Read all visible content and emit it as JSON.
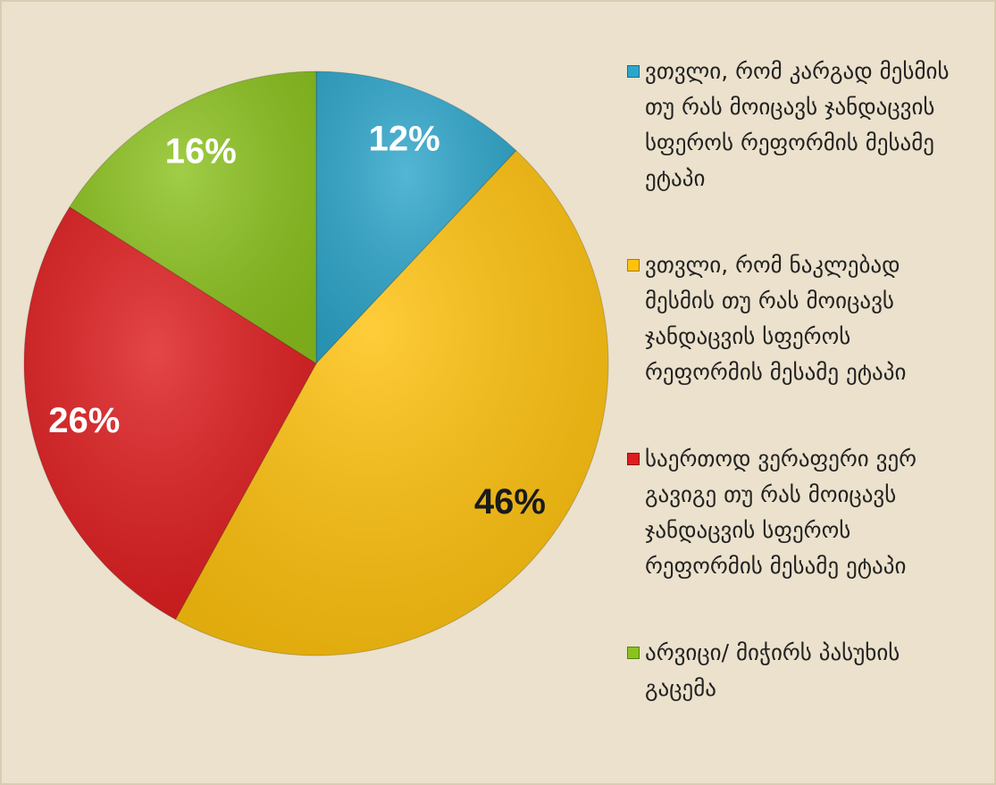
{
  "chart_data": {
    "type": "pie",
    "categories": [
      "ვთვლი, რომ კარგად მესმის თუ რას მოიცავს ჯანდაცვის სფეროს რეფორმის მესამე ეტაპი",
      "ვთვლი, რომ ნაკლებად მესმის თუ რას მოიცავს ჯანდაცვის სფეროს რეფორმის მესამე ეტაპი",
      "საერთოდ ვერაფერი ვერ გავიგე თუ რას მოიცავს ჯანდაცვის სფეროს რეფორმის მესამე ეტაპი",
      "არვიცი/ მიჭირს პასუხის გაცემა"
    ],
    "values": [
      12,
      46,
      26,
      16
    ],
    "value_labels": [
      "12%",
      "46%",
      "26%",
      "16%"
    ],
    "colors": [
      "#2ea6cb",
      "#ffc20e",
      "#de1d1f",
      "#8cc21f"
    ],
    "label_colors": [
      "#ffffff",
      "#1a1a1a",
      "#ffffff",
      "#ffffff"
    ],
    "legend": "right"
  }
}
